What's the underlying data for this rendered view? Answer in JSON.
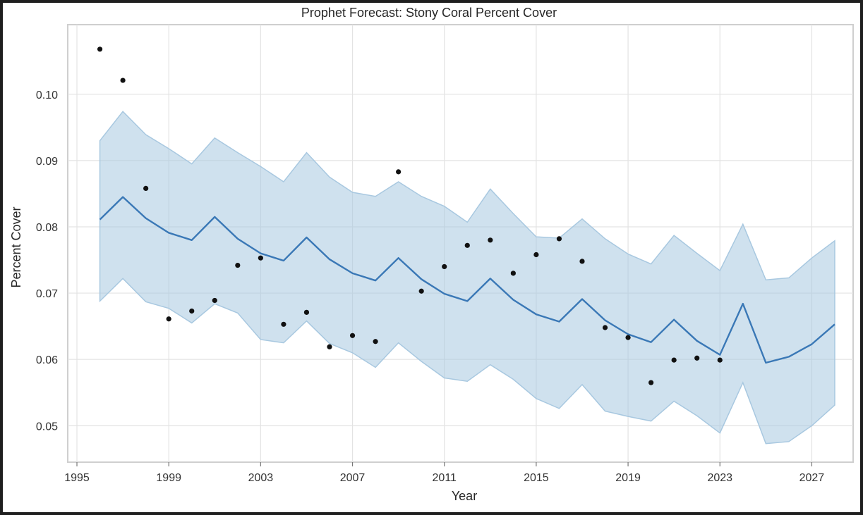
{
  "chart_data": {
    "type": "line",
    "title": "Prophet Forecast: Stony Coral Percent Cover",
    "xlabel": "Year",
    "ylabel": "Percent Cover",
    "xlim": [
      1994.6,
      2028.8
    ],
    "ylim": [
      0.0445,
      0.1105
    ],
    "x_ticks": [
      1995,
      1999,
      2003,
      2007,
      2011,
      2015,
      2019,
      2023,
      2027
    ],
    "y_ticks": [
      0.05,
      0.06,
      0.07,
      0.08,
      0.09,
      0.1
    ],
    "y_tick_labels": [
      "0.05",
      "0.06",
      "0.07",
      "0.08",
      "0.09",
      "0.10"
    ],
    "grid": true,
    "series": [
      {
        "role": "observed",
        "style": "scatter",
        "color": "#111111",
        "x": [
          1996,
          1997,
          1998,
          1999,
          2000,
          2001,
          2002,
          2003,
          2004,
          2005,
          2006,
          2007,
          2008,
          2009,
          2010,
          2011,
          2012,
          2013,
          2014,
          2015,
          2016,
          2017,
          2018,
          2019,
          2020,
          2021,
          2022,
          2023
        ],
        "y": [
          0.1068,
          0.1021,
          0.0858,
          0.0661,
          0.0673,
          0.0689,
          0.0742,
          0.0753,
          0.0653,
          0.0671,
          0.0619,
          0.0636,
          0.0627,
          0.0883,
          0.0703,
          0.074,
          0.0772,
          0.078,
          0.073,
          0.0758,
          0.0782,
          0.0748,
          0.0648,
          0.0633,
          0.0565,
          0.0599,
          0.0602,
          0.0599
        ]
      },
      {
        "role": "forecast",
        "style": "line",
        "color": "#3a78b6",
        "x": [
          1996,
          1997,
          1998,
          1999,
          2000,
          2001,
          2002,
          2003,
          2004,
          2005,
          2006,
          2007,
          2008,
          2009,
          2010,
          2011,
          2012,
          2013,
          2014,
          2015,
          2016,
          2017,
          2018,
          2019,
          2020,
          2021,
          2022,
          2023,
          2024,
          2025,
          2026,
          2027,
          2028
        ],
        "y": [
          0.0811,
          0.0845,
          0.0813,
          0.0791,
          0.078,
          0.0815,
          0.0782,
          0.076,
          0.0749,
          0.0784,
          0.0751,
          0.073,
          0.0719,
          0.0753,
          0.0721,
          0.0699,
          0.0688,
          0.0722,
          0.069,
          0.0668,
          0.0657,
          0.0691,
          0.0659,
          0.0638,
          0.0626,
          0.066,
          0.0628,
          0.0607,
          0.0684,
          0.0595,
          0.0604,
          0.0623,
          0.0653
        ],
        "lower": [
          0.0688,
          0.0722,
          0.0687,
          0.0677,
          0.0655,
          0.0684,
          0.067,
          0.063,
          0.0625,
          0.0658,
          0.0624,
          0.061,
          0.0588,
          0.0625,
          0.0597,
          0.0572,
          0.0567,
          0.0592,
          0.057,
          0.0541,
          0.0526,
          0.0562,
          0.0522,
          0.0514,
          0.0507,
          0.0537,
          0.0515,
          0.0489,
          0.0565,
          0.0473,
          0.0476,
          0.05,
          0.0531
        ],
        "upper": [
          0.093,
          0.0974,
          0.0939,
          0.0918,
          0.0895,
          0.0934,
          0.0912,
          0.0891,
          0.0868,
          0.0912,
          0.0875,
          0.0852,
          0.0846,
          0.0868,
          0.0846,
          0.0831,
          0.0807,
          0.0857,
          0.082,
          0.0785,
          0.0783,
          0.0812,
          0.0782,
          0.0759,
          0.0744,
          0.0787,
          0.076,
          0.0734,
          0.0804,
          0.072,
          0.0723,
          0.0753,
          0.0779
        ],
        "band_color": "#a8c8e0"
      }
    ]
  }
}
